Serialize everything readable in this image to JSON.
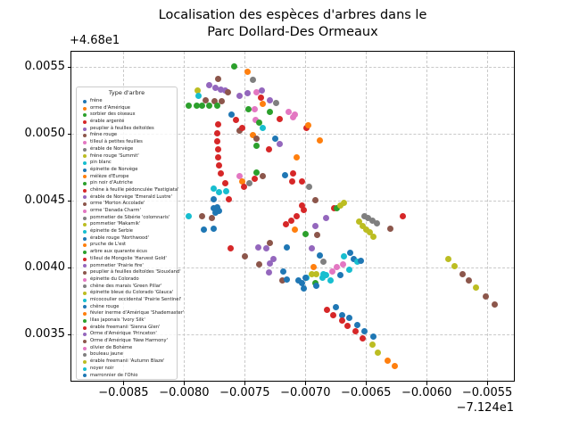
{
  "title": {
    "line1": "Localisation des espèces d'arbres dans le",
    "line2": "Parc Dollard-Des Ormeaux"
  },
  "chart_data": {
    "type": "scatter",
    "title": "Localisation des espèces d'arbres dans le Parc Dollard-Des Ormeaux",
    "xlabel": "",
    "ylabel": "",
    "x_offset_text": "−7.124e1",
    "y_offset_text": "+4.68e1",
    "xlim": [
      -0.00893,
      -0.00528
    ],
    "ylim": [
      0.00315,
      0.00561
    ],
    "xticks": [
      -0.0085,
      -0.008,
      -0.0075,
      -0.007,
      -0.0065,
      -0.006,
      -0.0055
    ],
    "xtick_labels": [
      "−0.0085",
      "−0.0080",
      "−0.0075",
      "−0.0070",
      "−0.0065",
      "−0.0060",
      "−0.0055"
    ],
    "yticks": [
      0.0055,
      0.005,
      0.0045,
      0.004,
      0.0035
    ],
    "ytick_labels": [
      "0.0055",
      "0.0050",
      "0.0045",
      "0.0040",
      "0.0035"
    ],
    "grid": true,
    "legend_title": "Type d'arbre",
    "legend_position": "upper left",
    "palette": [
      "#1f77b4",
      "#ff7f0e",
      "#2ca02c",
      "#d62728",
      "#9467bd",
      "#8c564b",
      "#e377c2",
      "#7f7f7f",
      "#bcbd22",
      "#17becf"
    ],
    "species": [
      "frêne",
      "orme d'Amérique",
      "sorbier des oiseaux",
      "érable argenté",
      "peuplier à feuilles deltoïdes",
      "frêne rouge",
      "tilleul à petites feuilles",
      "érable de Norvège",
      "frêne rouge 'Summit'",
      "pin blanc",
      "épinette de Norvège",
      "mélèze d'Europe",
      "pin noir d'Autriche",
      "chêne à feuille pédonculée 'Fastigiata'",
      "érable de Norvège 'Emerald Lustre'",
      "orme 'Morton Accolade'",
      "orme 'Danada Charm'",
      "pommetier de Sibérie 'colomnaris'",
      "pommetier 'Makamik'",
      "épinette de Serbie",
      "érable rouge 'Northwood'",
      "pruche de L'est",
      "arbre aux quarante écus",
      "tilleul de Mongolie 'Harvest Gold'",
      "pommetier 'Prairie fire'",
      "peuplier à feuilles deltoïdes 'Siouxland'",
      "épinette du Colorado",
      "chêne des marais 'Green Pillar'",
      "épinette bleue du Colorado 'Glauca'",
      "micocoulier occidental 'Prairie Sentinel'",
      "chêne rouge",
      "févier inerme d'Amérique 'Shademaster'",
      "lilas japonais 'Ivory Silk'",
      "érable freemanii 'Sienna Glen'",
      "Orme d'Amérique 'Princeton'",
      "Orme d'Amérique 'New Harmony'",
      "olivier de Bohème",
      "bouleau jaune",
      "érable freemanii 'Autumn Blaze'",
      "noyer noir",
      "marronnier de l'Ohio"
    ],
    "points": [
      [
        -0.00759,
        0.0055,
        2
      ],
      [
        -0.00748,
        0.00546,
        1
      ],
      [
        -0.00772,
        0.00541,
        5
      ],
      [
        -0.00743,
        0.0054,
        7
      ],
      [
        -0.00789,
        0.00532,
        8
      ],
      [
        -0.00779,
        0.00536,
        4
      ],
      [
        -0.00774,
        0.00534,
        4
      ],
      [
        -0.0077,
        0.00533,
        4
      ],
      [
        -0.00766,
        0.00532,
        4
      ],
      [
        -0.00788,
        0.00528,
        9
      ],
      [
        -0.00782,
        0.00525,
        5
      ],
      [
        -0.00775,
        0.00524,
        5
      ],
      [
        -0.00769,
        0.00524,
        5
      ],
      [
        -0.00764,
        0.00531,
        5
      ],
      [
        -0.00754,
        0.00528,
        4
      ],
      [
        -0.00748,
        0.0053,
        4
      ],
      [
        -0.0074,
        0.00531,
        6
      ],
      [
        -0.00736,
        0.00532,
        4
      ],
      [
        -0.00729,
        0.00525,
        4
      ],
      [
        -0.00724,
        0.00523,
        7
      ],
      [
        -0.00737,
        0.00527,
        3
      ],
      [
        -0.00796,
        0.00521,
        2
      ],
      [
        -0.0079,
        0.00521,
        2
      ],
      [
        -0.00785,
        0.00521,
        2
      ],
      [
        -0.00779,
        0.00521,
        2
      ],
      [
        -0.00773,
        0.00521,
        2
      ],
      [
        -0.00747,
        0.00518,
        2
      ],
      [
        -0.00742,
        0.00518,
        6
      ],
      [
        -0.00735,
        0.00522,
        1
      ],
      [
        -0.00729,
        0.00516,
        2
      ],
      [
        -0.00714,
        0.00516,
        6
      ],
      [
        -0.0071,
        0.00512,
        6
      ],
      [
        -0.00721,
        0.00511,
        3
      ],
      [
        -0.00709,
        0.00514,
        6
      ],
      [
        -0.00761,
        0.00514,
        0
      ],
      [
        -0.00757,
        0.0051,
        3
      ],
      [
        -0.00741,
        0.0051,
        6
      ],
      [
        -0.00738,
        0.00508,
        2
      ],
      [
        -0.00735,
        0.00504,
        9
      ],
      [
        -0.00699,
        0.00504,
        3
      ],
      [
        -0.00698,
        0.00506,
        1
      ],
      [
        -0.0073,
        0.00488,
        3
      ],
      [
        -0.0074,
        0.00491,
        2
      ],
      [
        -0.00743,
        0.00499,
        1
      ],
      [
        -0.0074,
        0.00496,
        5
      ],
      [
        -0.00725,
        0.00496,
        0
      ],
      [
        -0.00721,
        0.00492,
        4
      ],
      [
        -0.00772,
        0.00507,
        3
      ],
      [
        -0.00773,
        0.005,
        3
      ],
      [
        -0.00773,
        0.00494,
        3
      ],
      [
        -0.00772,
        0.00488,
        3
      ],
      [
        -0.00772,
        0.00482,
        3
      ],
      [
        -0.00771,
        0.00476,
        3
      ],
      [
        -0.00754,
        0.00502,
        5
      ],
      [
        -0.00752,
        0.00504,
        3
      ],
      [
        -0.00688,
        0.00495,
        1
      ],
      [
        -0.00707,
        0.00482,
        1
      ],
      [
        -0.0077,
        0.0047,
        3
      ],
      [
        -0.00766,
        0.00463,
        3
      ],
      [
        -0.00754,
        0.00468,
        6
      ],
      [
        -0.00752,
        0.00464,
        1
      ],
      [
        -0.00751,
        0.0046,
        3
      ],
      [
        -0.00746,
        0.00463,
        7
      ],
      [
        -0.00742,
        0.00466,
        3
      ],
      [
        -0.0074,
        0.00471,
        2
      ],
      [
        -0.00735,
        0.00468,
        5
      ],
      [
        -0.00717,
        0.00469,
        0
      ],
      [
        -0.0071,
        0.0047,
        3
      ],
      [
        -0.00711,
        0.00464,
        3
      ],
      [
        -0.00703,
        0.00464,
        3
      ],
      [
        -0.00697,
        0.0046,
        7
      ],
      [
        -0.00692,
        0.0045,
        5
      ],
      [
        -0.00776,
        0.00459,
        9
      ],
      [
        -0.00771,
        0.00456,
        9
      ],
      [
        -0.00765,
        0.00457,
        9
      ],
      [
        -0.00776,
        0.00451,
        0
      ],
      [
        -0.00763,
        0.00451,
        3
      ],
      [
        -0.00776,
        0.00444,
        0
      ],
      [
        -0.00773,
        0.00445,
        0
      ],
      [
        -0.00771,
        0.00442,
        0
      ],
      [
        -0.00774,
        0.00441,
        0
      ],
      [
        -0.00796,
        0.00438,
        9
      ],
      [
        -0.00785,
        0.00438,
        5
      ],
      [
        -0.00777,
        0.00437,
        5
      ],
      [
        -0.00784,
        0.00428,
        0
      ],
      [
        -0.00776,
        0.00429,
        0
      ],
      [
        -0.00762,
        0.00414,
        3
      ],
      [
        -0.0075,
        0.00408,
        5
      ],
      [
        -0.00739,
        0.00415,
        4
      ],
      [
        -0.00732,
        0.00414,
        4
      ],
      [
        -0.00729,
        0.00418,
        5
      ],
      [
        -0.00738,
        0.00402,
        5
      ],
      [
        -0.00729,
        0.00403,
        4
      ],
      [
        -0.00726,
        0.00406,
        4
      ],
      [
        -0.00715,
        0.00415,
        0
      ],
      [
        -0.00716,
        0.00432,
        3
      ],
      [
        -0.00712,
        0.00435,
        3
      ],
      [
        -0.00707,
        0.00438,
        3
      ],
      [
        -0.00703,
        0.00446,
        3
      ],
      [
        -0.00701,
        0.00443,
        3
      ],
      [
        -0.00676,
        0.00444,
        3
      ],
      [
        -0.00674,
        0.00444,
        2
      ],
      [
        -0.00671,
        0.00446,
        8
      ],
      [
        -0.00668,
        0.00448,
        8
      ],
      [
        -0.00683,
        0.00437,
        4
      ],
      [
        -0.00692,
        0.00431,
        4
      ],
      [
        -0.00709,
        0.00428,
        1
      ],
      [
        -0.007,
        0.00425,
        2
      ],
      [
        -0.0069,
        0.00424,
        5
      ],
      [
        -0.00695,
        0.00414,
        4
      ],
      [
        -0.00688,
        0.00409,
        0
      ],
      [
        -0.00685,
        0.00404,
        7
      ],
      [
        -0.00668,
        0.00408,
        9
      ],
      [
        -0.00669,
        0.00402,
        6
      ],
      [
        -0.00693,
        0.004,
        1
      ],
      [
        -0.00695,
        0.00395,
        8
      ],
      [
        -0.00691,
        0.00395,
        8
      ],
      [
        -0.00685,
        0.00395,
        9
      ],
      [
        -0.00718,
        0.00397,
        0
      ],
      [
        -0.00719,
        0.0039,
        5
      ],
      [
        -0.00706,
        0.0039,
        0
      ],
      [
        -0.00699,
        0.00392,
        9
      ],
      [
        -0.00671,
        0.00394,
        0
      ],
      [
        -0.0073,
        0.00396,
        4
      ],
      [
        -0.00715,
        0.00391,
        0
      ],
      [
        -0.00703,
        0.00388,
        0
      ],
      [
        -0.00701,
        0.00384,
        0
      ],
      [
        -0.007,
        0.00392,
        0
      ],
      [
        -0.00686,
        0.00392,
        9
      ],
      [
        -0.00683,
        0.00394,
        9
      ],
      [
        -0.00692,
        0.00388,
        2
      ],
      [
        -0.00691,
        0.00386,
        0
      ],
      [
        -0.00679,
        0.0039,
        9
      ],
      [
        -0.00678,
        0.00397,
        6
      ],
      [
        -0.00674,
        0.004,
        6
      ],
      [
        -0.00664,
        0.00398,
        9
      ],
      [
        -0.00651,
        0.00438,
        7
      ],
      [
        -0.00648,
        0.00437,
        7
      ],
      [
        -0.00645,
        0.00435,
        7
      ],
      [
        -0.00641,
        0.00433,
        7
      ],
      [
        -0.00656,
        0.00434,
        8
      ],
      [
        -0.00653,
        0.00431,
        8
      ],
      [
        -0.0065,
        0.00428,
        8
      ],
      [
        -0.00647,
        0.00426,
        8
      ],
      [
        -0.00644,
        0.00423,
        8
      ],
      [
        -0.0062,
        0.00438,
        3
      ],
      [
        -0.0063,
        0.00429,
        5
      ],
      [
        -0.00663,
        0.00411,
        0
      ],
      [
        -0.0066,
        0.00406,
        0
      ],
      [
        -0.00657,
        0.00404,
        9
      ],
      [
        -0.00654,
        0.00405,
        0
      ],
      [
        -0.00675,
        0.0037,
        0
      ],
      [
        -0.0067,
        0.00364,
        0
      ],
      [
        -0.00664,
        0.00362,
        0
      ],
      [
        -0.00657,
        0.00357,
        0
      ],
      [
        -0.00651,
        0.00352,
        0
      ],
      [
        -0.00644,
        0.00348,
        0
      ],
      [
        -0.00682,
        0.00368,
        3
      ],
      [
        -0.00677,
        0.00364,
        3
      ],
      [
        -0.0067,
        0.0036,
        3
      ],
      [
        -0.00665,
        0.00356,
        3
      ],
      [
        -0.00659,
        0.00352,
        3
      ],
      [
        -0.00653,
        0.00347,
        3
      ],
      [
        -0.00645,
        0.00342,
        8
      ],
      [
        -0.0064,
        0.00336,
        8
      ],
      [
        -0.00632,
        0.0033,
        1
      ],
      [
        -0.00626,
        0.00326,
        1
      ],
      [
        -0.00582,
        0.00406,
        8
      ],
      [
        -0.00577,
        0.00401,
        8
      ],
      [
        -0.0057,
        0.00395,
        5
      ],
      [
        -0.00565,
        0.0039,
        5
      ],
      [
        -0.00559,
        0.00385,
        8
      ],
      [
        -0.00551,
        0.00378,
        5
      ],
      [
        -0.00544,
        0.00372,
        5
      ]
    ]
  }
}
